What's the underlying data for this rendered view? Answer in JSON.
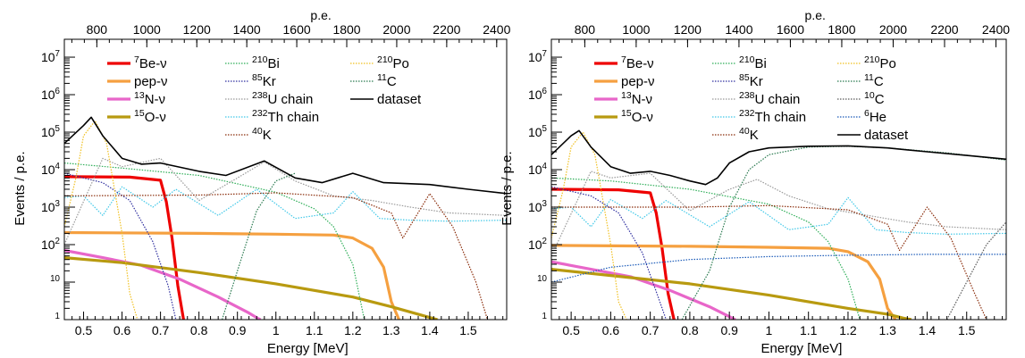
{
  "chart_data": [
    {
      "type": "line",
      "xlabel": "Energy [MeV]",
      "ylabel": "Events / p.e.",
      "x2label": "p.e.",
      "xlim": [
        0.45,
        1.6
      ],
      "ylim": [
        1,
        30000000
      ],
      "yscale": "log",
      "x2lim": [
        670,
        2440
      ],
      "x_ticks": [
        "0.5",
        "0.6",
        "0.7",
        "0.8",
        "0.9",
        "1",
        "1.1",
        "1.2",
        "1.3",
        "1.4",
        "1.5"
      ],
      "x2_ticks": [
        "800",
        "1000",
        "1200",
        "1400",
        "1600",
        "1800",
        "2000",
        "2200",
        "2400"
      ],
      "y_ticks": [
        "1",
        "10",
        "10^2",
        "10^3",
        "10^4",
        "10^5",
        "10^6",
        "10^7"
      ],
      "legend_position": "top",
      "series": [
        {
          "name": "7Be-ν",
          "color": "#ee0000",
          "width": 3.2,
          "style": "solid",
          "x": [
            0.45,
            0.62,
            0.7,
            0.715,
            0.73,
            0.745,
            0.76
          ],
          "y": [
            6500,
            6300,
            5200,
            1400,
            150,
            8,
            1
          ]
        },
        {
          "name": "pep-ν",
          "color": "#f5a040",
          "width": 3.2,
          "style": "solid",
          "x": [
            0.45,
            0.8,
            1.0,
            1.15,
            1.2,
            1.25,
            1.28,
            1.3,
            1.32
          ],
          "y": [
            210,
            200,
            190,
            180,
            150,
            80,
            25,
            3,
            1
          ]
        },
        {
          "name": "13N-ν",
          "color": "#e866c9",
          "width": 3.2,
          "style": "solid",
          "x": [
            0.45,
            0.55,
            0.65,
            0.75,
            0.85,
            0.93,
            0.955,
            0.96
          ],
          "y": [
            70,
            45,
            28,
            12,
            4,
            1.5,
            1.05,
            1
          ]
        },
        {
          "name": "15O-ν",
          "color": "#b89a10",
          "width": 3.2,
          "style": "solid",
          "x": [
            0.45,
            0.6,
            0.8,
            1.0,
            1.2,
            1.3,
            1.38,
            1.42
          ],
          "y": [
            45,
            33,
            18,
            9,
            4,
            2.2,
            1.3,
            1
          ]
        },
        {
          "name": "210Bi",
          "color": "#2eae58",
          "width": 1.2,
          "style": "dotted",
          "x": [
            0.45,
            0.6,
            0.8,
            1.0,
            1.1,
            1.15,
            1.2,
            1.23
          ],
          "y": [
            15000,
            11000,
            7000,
            2500,
            900,
            300,
            30,
            1
          ]
        },
        {
          "name": "85Kr",
          "color": "#3030a0",
          "width": 1.2,
          "style": "dotted",
          "x": [
            0.45,
            0.55,
            0.62,
            0.68,
            0.72,
            0.74
          ],
          "y": [
            8000,
            4500,
            1500,
            120,
            8,
            1
          ]
        },
        {
          "name": "238U chain",
          "color": "#999999",
          "width": 1.2,
          "style": "dotted",
          "x": [
            0.45,
            0.55,
            0.6,
            0.7,
            0.8,
            0.9,
            0.97,
            1.05,
            1.15,
            1.25,
            1.35,
            1.45,
            1.6
          ],
          "y": [
            100,
            20000,
            12000,
            20000,
            1500,
            6000,
            16000,
            5000,
            2000,
            1500,
            1000,
            700,
            600
          ]
        },
        {
          "name": "232Th chain",
          "color": "#40c8e8",
          "width": 1.2,
          "style": "dotted",
          "x": [
            0.45,
            0.5,
            0.55,
            0.6,
            0.68,
            0.74,
            0.85,
            0.95,
            1.05,
            1.15,
            1.2,
            1.27,
            1.35,
            1.45,
            1.6
          ],
          "y": [
            1800,
            2000,
            600,
            3500,
            1000,
            3000,
            600,
            3000,
            500,
            700,
            2600,
            500,
            450,
            420,
            450
          ]
        },
        {
          "name": "40K",
          "color": "#8a2c0a",
          "width": 1.2,
          "style": "dotted",
          "x": [
            0.45,
            0.8,
            1.0,
            1.2,
            1.3,
            1.33,
            1.4,
            1.46,
            1.52,
            1.55
          ],
          "y": [
            2000,
            2100,
            2400,
            1800,
            700,
            150,
            2300,
            300,
            10,
            1
          ]
        },
        {
          "name": "210Po",
          "color": "#f0c020",
          "width": 1.2,
          "style": "dotted",
          "x": [
            0.45,
            0.48,
            0.5,
            0.53,
            0.56,
            0.6,
            0.62,
            0.64
          ],
          "y": [
            300,
            6000,
            80000,
            200000,
            50000,
            200,
            5,
            1
          ]
        },
        {
          "name": "11C",
          "color": "#2a7a50",
          "width": 1.2,
          "style": "dotted",
          "x": [
            0.86,
            0.9,
            0.95,
            1.0,
            1.05
          ],
          "y": [
            1,
            20,
            800,
            5000,
            8000
          ]
        },
        {
          "name": "dataset",
          "color": "#000000",
          "width": 1.6,
          "style": "solid",
          "x": [
            0.45,
            0.5,
            0.52,
            0.55,
            0.6,
            0.65,
            0.7,
            0.8,
            0.87,
            0.97,
            1.05,
            1.12,
            1.2,
            1.28,
            1.4,
            1.5,
            1.6
          ],
          "y": [
            50000,
            150000,
            250000,
            80000,
            20000,
            14000,
            15000,
            9000,
            7000,
            17000,
            6000,
            4500,
            8000,
            4500,
            4000,
            3000,
            2300
          ]
        }
      ]
    },
    {
      "type": "line",
      "xlabel": "Energy [MeV]",
      "ylabel": "Events / p.e.",
      "x2label": "p.e.",
      "xlim": [
        0.45,
        1.6
      ],
      "ylim": [
        1,
        30000000
      ],
      "yscale": "log",
      "x2lim": [
        670,
        2440
      ],
      "x_ticks": [
        "0.5",
        "0.6",
        "0.7",
        "0.8",
        "0.9",
        "1",
        "1.1",
        "1.2",
        "1.3",
        "1.4",
        "1.5"
      ],
      "x2_ticks": [
        "800",
        "1000",
        "1200",
        "1400",
        "1600",
        "1800",
        "2000",
        "2200",
        "2400"
      ],
      "y_ticks": [
        "1",
        "10",
        "10^2",
        "10^3",
        "10^4",
        "10^5",
        "10^6",
        "10^7"
      ],
      "legend_position": "top",
      "series": [
        {
          "name": "7Be-ν",
          "color": "#ee0000",
          "width": 3.2,
          "style": "solid",
          "x": [
            0.45,
            0.62,
            0.7,
            0.715,
            0.73,
            0.745,
            0.76
          ],
          "y": [
            3000,
            2900,
            2400,
            700,
            80,
            5,
            1
          ]
        },
        {
          "name": "pep-ν",
          "color": "#f5a040",
          "width": 3.2,
          "style": "solid",
          "x": [
            0.45,
            0.8,
            1.0,
            1.15,
            1.2,
            1.25,
            1.28,
            1.3,
            1.32
          ],
          "y": [
            95,
            90,
            85,
            80,
            65,
            35,
            12,
            2,
            1
          ]
        },
        {
          "name": "13N-ν",
          "color": "#e866c9",
          "width": 3.2,
          "style": "solid",
          "x": [
            0.45,
            0.55,
            0.65,
            0.75,
            0.85,
            0.9,
            0.915
          ],
          "y": [
            35,
            22,
            14,
            6,
            2.2,
            1.2,
            1
          ]
        },
        {
          "name": "15O-ν",
          "color": "#b89a10",
          "width": 3.2,
          "style": "solid",
          "x": [
            0.45,
            0.6,
            0.8,
            1.0,
            1.2,
            1.3,
            1.34,
            1.36
          ],
          "y": [
            22,
            15,
            9,
            4.5,
            2,
            1.4,
            1.1,
            1
          ]
        },
        {
          "name": "210Bi",
          "color": "#2eae58",
          "width": 1.2,
          "style": "dotted",
          "x": [
            0.45,
            0.6,
            0.8,
            1.0,
            1.1,
            1.15,
            1.2,
            1.23
          ],
          "y": [
            6000,
            5000,
            3000,
            1200,
            400,
            120,
            12,
            1
          ]
        },
        {
          "name": "85Kr",
          "color": "#3030a0",
          "width": 1.2,
          "style": "dotted",
          "x": [
            0.45,
            0.55,
            0.62,
            0.68,
            0.72,
            0.74
          ],
          "y": [
            3500,
            2000,
            700,
            60,
            4,
            1
          ]
        },
        {
          "name": "238U chain",
          "color": "#999999",
          "width": 1.2,
          "style": "dotted",
          "x": [
            0.45,
            0.55,
            0.6,
            0.7,
            0.8,
            0.9,
            0.97,
            1.05,
            1.15,
            1.25,
            1.35,
            1.45,
            1.6
          ],
          "y": [
            50,
            9000,
            6000,
            8000,
            800,
            3000,
            5500,
            2000,
            900,
            600,
            400,
            300,
            250
          ]
        },
        {
          "name": "232Th chain",
          "color": "#40c8e8",
          "width": 1.2,
          "style": "dotted",
          "x": [
            0.45,
            0.5,
            0.55,
            0.6,
            0.68,
            0.74,
            0.85,
            0.95,
            1.05,
            1.15,
            1.2,
            1.27,
            1.35,
            1.45,
            1.6
          ],
          "y": [
            900,
            1000,
            300,
            1600,
            500,
            1500,
            300,
            1400,
            250,
            350,
            1800,
            250,
            210,
            190,
            200
          ]
        },
        {
          "name": "40K",
          "color": "#8a2c0a",
          "width": 1.2,
          "style": "dotted",
          "x": [
            0.45,
            0.8,
            1.0,
            1.2,
            1.3,
            1.33,
            1.4,
            1.46,
            1.52,
            1.55
          ],
          "y": [
            1000,
            1000,
            1100,
            850,
            350,
            70,
            1000,
            150,
            5,
            1
          ]
        },
        {
          "name": "210Po",
          "color": "#f0c020",
          "width": 1.2,
          "style": "dotted",
          "x": [
            0.45,
            0.48,
            0.5,
            0.53,
            0.56,
            0.6,
            0.62,
            0.64
          ],
          "y": [
            150,
            3000,
            40000,
            100000,
            25000,
            100,
            3,
            1
          ]
        },
        {
          "name": "11C",
          "color": "#2a7a50",
          "width": 1.2,
          "style": "dotted",
          "x": [
            0.78,
            0.85,
            0.9,
            0.95,
            1.0,
            1.1,
            1.2,
            1.3,
            1.45,
            1.6
          ],
          "y": [
            1,
            20,
            1000,
            10000,
            25000,
            40000,
            42000,
            38000,
            28000,
            18000
          ]
        },
        {
          "name": "10C",
          "color": "#5a5a5a",
          "width": 1.2,
          "style": "dotted",
          "x": [
            1.45,
            1.5,
            1.55,
            1.6
          ],
          "y": [
            1,
            10,
            100,
            400
          ]
        },
        {
          "name": "6He",
          "color": "#1a5ab8",
          "width": 1.2,
          "style": "dotted",
          "x": [
            0.45,
            0.6,
            0.8,
            1.0,
            1.2,
            1.4,
            1.6
          ],
          "y": [
            10,
            25,
            40,
            48,
            52,
            55,
            55
          ]
        },
        {
          "name": "dataset",
          "color": "#000000",
          "width": 1.6,
          "style": "solid",
          "x": [
            0.45,
            0.5,
            0.52,
            0.55,
            0.6,
            0.65,
            0.7,
            0.75,
            0.8,
            0.84,
            0.87,
            0.9,
            0.95,
            1.0,
            1.1,
            1.2,
            1.3,
            1.4,
            1.5,
            1.6
          ],
          "y": [
            25000,
            80000,
            110000,
            40000,
            12000,
            8000,
            9000,
            7000,
            5000,
            4000,
            6000,
            15000,
            30000,
            38000,
            42000,
            43000,
            38000,
            30000,
            24000,
            19000
          ]
        }
      ]
    }
  ]
}
